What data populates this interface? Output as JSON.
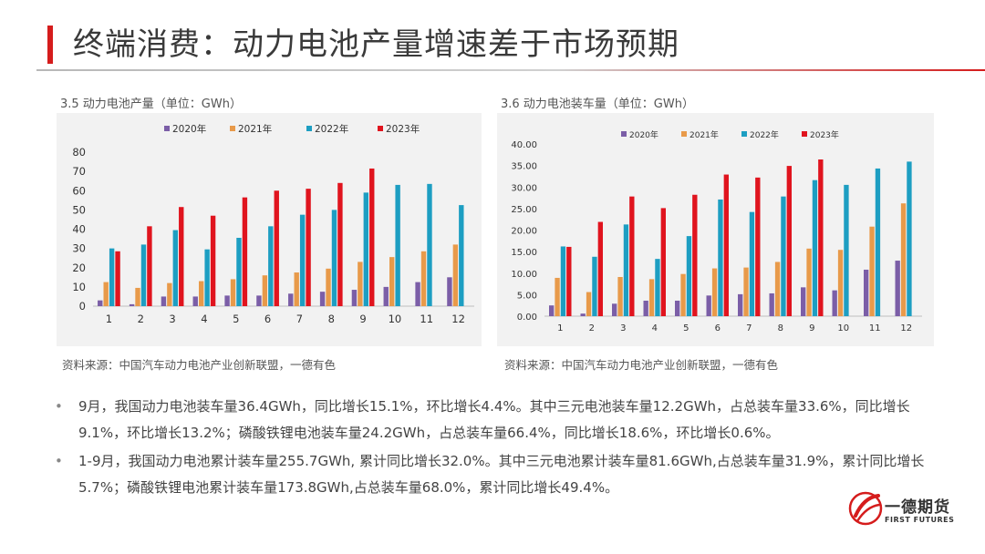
{
  "page": {
    "title": "终端消费：动力电池产量增速差于市场预期"
  },
  "left_chart": {
    "caption": "3.5 动力电池产量（单位：GWh）",
    "source": "资料来源：中国汽车动力电池产业创新联盟，一德有色"
  },
  "right_chart": {
    "caption": "3.6 动力电池装车量（单位：GWh）",
    "source": "资料来源：中国汽车动力电池产业创新联盟，一德有色"
  },
  "colors": {
    "s2020": "#7b5ea7",
    "s2021": "#e89a4a",
    "s2022": "#1d9ec2",
    "s2023": "#e0141e"
  },
  "chart_data": [
    {
      "type": "bar",
      "categories": [
        "1",
        "2",
        "3",
        "4",
        "5",
        "6",
        "7",
        "8",
        "9",
        "10",
        "11",
        "12"
      ],
      "ylim": [
        0,
        80
      ],
      "yticks": [
        0,
        10,
        20,
        30,
        40,
        50,
        60,
        70,
        80
      ],
      "ytick_labels": [
        "0",
        "10",
        "20",
        "30",
        "40",
        "50",
        "60",
        "70",
        "80"
      ],
      "legend_position": "top",
      "series": [
        {
          "name": "2020年",
          "values": [
            3,
            1,
            5,
            5,
            5.5,
            5.5,
            6.5,
            7.5,
            8.5,
            10,
            12.5,
            15
          ]
        },
        {
          "name": "2021年",
          "values": [
            12.5,
            9.5,
            12,
            13,
            14,
            16,
            17.5,
            19.5,
            23,
            25.5,
            28.5,
            32
          ]
        },
        {
          "name": "2022年",
          "values": [
            30,
            32,
            39.5,
            29.5,
            35.5,
            41.5,
            47.5,
            50,
            59,
            63,
            63.5,
            52.5
          ]
        },
        {
          "name": "2023年",
          "values": [
            28.5,
            41.5,
            51.5,
            47,
            56.5,
            60,
            61,
            64,
            71.5,
            null,
            null,
            null
          ]
        }
      ]
    },
    {
      "type": "bar",
      "categories": [
        "1",
        "2",
        "3",
        "4",
        "5",
        "6",
        "7",
        "8",
        "9",
        "10",
        "11",
        "12"
      ],
      "ylim": [
        0,
        40
      ],
      "yticks": [
        0,
        5,
        10,
        15,
        20,
        25,
        30,
        35,
        40
      ],
      "ytick_labels": [
        "0.00",
        "5.00",
        "10.00",
        "15.00",
        "20.00",
        "25.00",
        "30.00",
        "35.00",
        "40.00"
      ],
      "legend_position": "top",
      "series": [
        {
          "name": "2020年",
          "values": [
            2.5,
            0.6,
            2.9,
            3.6,
            3.6,
            4.8,
            5.1,
            5.3,
            6.7,
            6.0,
            10.8,
            12.9
          ]
        },
        {
          "name": "2021年",
          "values": [
            8.9,
            5.6,
            9.1,
            8.6,
            9.8,
            11.1,
            11.3,
            12.6,
            15.7,
            15.4,
            20.8,
            26.2
          ]
        },
        {
          "name": "2022年",
          "values": [
            16.2,
            13.8,
            21.3,
            13.3,
            18.6,
            27.1,
            24.2,
            27.8,
            31.6,
            30.5,
            34.3,
            35.9
          ]
        },
        {
          "name": "2023年",
          "values": [
            16.1,
            21.9,
            27.8,
            25.1,
            28.2,
            32.9,
            32.2,
            34.9,
            36.4,
            null,
            null,
            null
          ]
        }
      ]
    }
  ],
  "bullets": [
    "9月，我国动力电池装车量36.4GWh，同比增长15.1%，环比增长4.4%。其中三元电池装车量12.2GWh，占总装车量33.6%，同比增长9.1%，环比增长13.2%；磷酸铁锂电池装车量24.2GWh，占总装车量66.4%，同比增长18.6%，环比增长0.6%。",
    "1-9月，我国动力电池累计装车量255.7GWh, 累计同比增长32.0%。其中三元电池累计装车量81.6GWh,占总装车量31.9%，累计同比增长5.7%；磷酸铁锂电池累计装车量173.8GWh,占总装车量68.0%，累计同比增长49.4%。"
  ],
  "logo": {
    "name": "一德期货",
    "en": "FIRST FUTURES"
  }
}
